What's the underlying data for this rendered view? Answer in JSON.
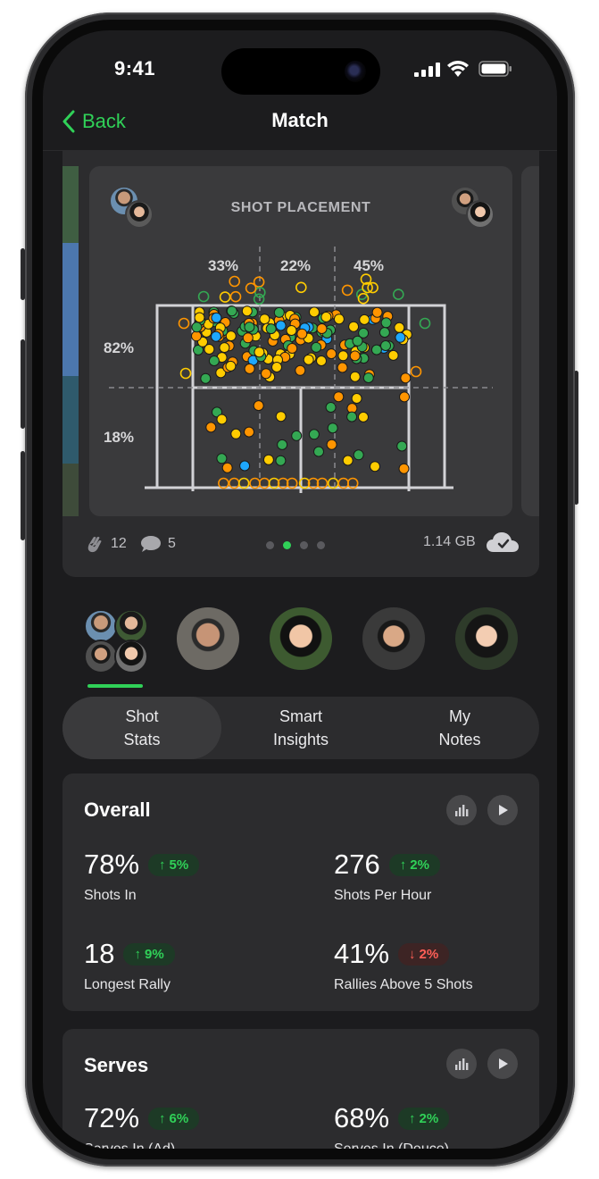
{
  "status_bar": {
    "time": "9:41"
  },
  "nav": {
    "back_label": "Back",
    "title": "Match"
  },
  "shot_placement": {
    "title": "SHOT PLACEMENT",
    "column_percents": [
      "33%",
      "22%",
      "45%"
    ],
    "row_percents": [
      "82%",
      "18%"
    ]
  },
  "media_footer": {
    "claps": "12",
    "comments": "5",
    "size": "1.14 GB",
    "page_dots": 4,
    "active_dot": 2
  },
  "tabs": [
    {
      "label": "Shot\nStats",
      "selected": true
    },
    {
      "label": "Smart\nInsights",
      "selected": false
    },
    {
      "label": "My\nNotes",
      "selected": false
    }
  ],
  "overall": {
    "title": "Overall",
    "stats": [
      {
        "value": "78%",
        "delta": "5%",
        "dir": "up",
        "label": "Shots In"
      },
      {
        "value": "276",
        "delta": "2%",
        "dir": "up",
        "label": "Shots Per Hour"
      },
      {
        "value": "18",
        "delta": "9%",
        "dir": "up",
        "label": "Longest Rally"
      },
      {
        "value": "41%",
        "delta": "2%",
        "dir": "down",
        "label": "Rallies Above 5 Shots"
      }
    ]
  },
  "serves": {
    "title": "Serves",
    "stats": [
      {
        "value": "72%",
        "delta": "6%",
        "dir": "up",
        "label": "Serves In (Ad)"
      },
      {
        "value": "68%",
        "delta": "2%",
        "dir": "up",
        "label": "Serves In (Deuce)"
      }
    ]
  },
  "colors": {
    "accent": "#30d158",
    "down": "#ff5f57",
    "ball_orange": "#ff9500",
    "ball_yellow": "#ffcc00",
    "ball_green": "#34a853",
    "ball_blue": "#1ea7fd"
  }
}
